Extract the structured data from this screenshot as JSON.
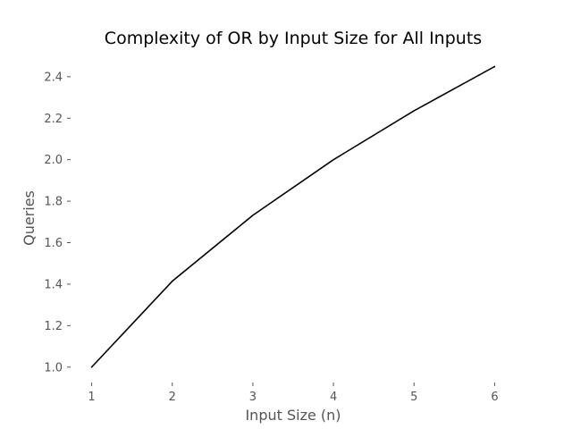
{
  "chart_data": {
    "type": "line",
    "title": "Complexity of OR by Input Size for All Inputs",
    "xlabel": "Input Size (n)",
    "ylabel": "Queries",
    "x": [
      1,
      2,
      3,
      4,
      5,
      6
    ],
    "series": [
      {
        "values": [
          1.0,
          1.414,
          1.732,
          2.0,
          2.236,
          2.449
        ],
        "color": "#000000"
      }
    ],
    "x_ticks": [
      1,
      2,
      3,
      4,
      5,
      6
    ],
    "x_tick_labels": [
      "1",
      "2",
      "3",
      "4",
      "5",
      "6"
    ],
    "y_ticks": [
      1.0,
      1.2,
      1.4,
      1.6,
      1.8,
      2.0,
      2.2,
      2.4
    ],
    "y_tick_labels": [
      "1.0",
      "1.2",
      "1.4",
      "1.6",
      "1.8",
      "2.0",
      "2.2",
      "2.4"
    ],
    "xlim": [
      0.75,
      6.25
    ],
    "ylim": [
      0.93,
      2.52
    ],
    "grid": false,
    "legend": "none"
  }
}
